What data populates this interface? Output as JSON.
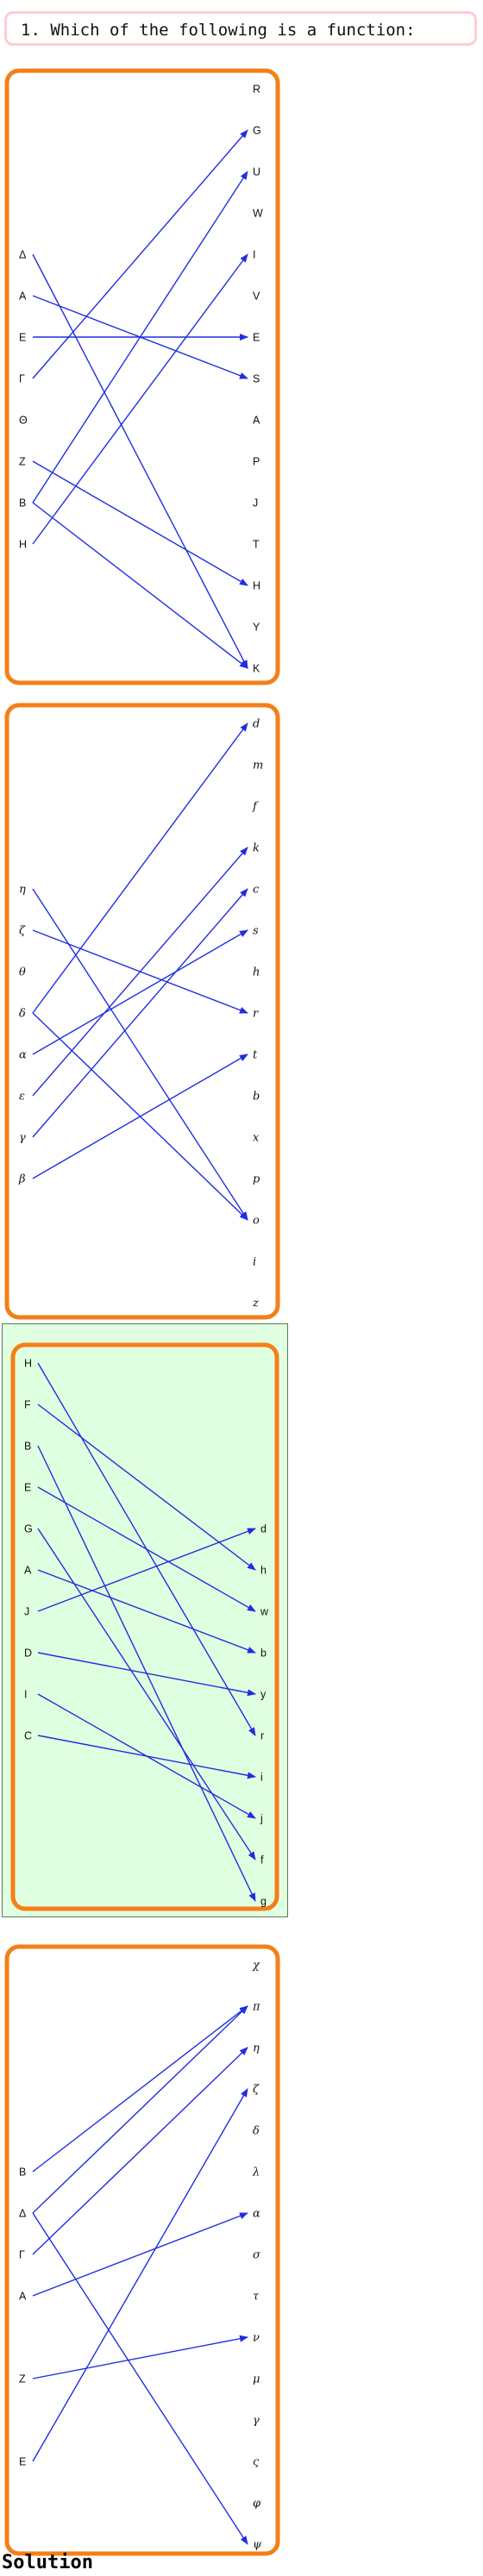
{
  "question": {
    "text": "1. Which of the following is a function:"
  },
  "solution_label": "Solution",
  "colors": {
    "frame": "#f57f17",
    "arrow": "#1f2ee0",
    "correct_bg": "#e0ffe0",
    "question_border": "#ffcdd2"
  },
  "options": [
    {
      "italic": false,
      "correct": false,
      "left": [
        "Δ",
        "A",
        "E",
        "Γ",
        "Θ",
        "Z",
        "B",
        "H"
      ],
      "right": [
        "R",
        "G",
        "U",
        "W",
        "I",
        "V",
        "E",
        "S",
        "A",
        "P",
        "J",
        "T",
        "H",
        "Y",
        "K"
      ],
      "edges": [
        [
          0,
          14
        ],
        [
          1,
          7
        ],
        [
          2,
          6
        ],
        [
          3,
          1
        ],
        [
          5,
          12
        ],
        [
          6,
          2
        ],
        [
          6,
          14
        ],
        [
          7,
          4
        ]
      ]
    },
    {
      "italic": true,
      "correct": false,
      "left": [
        "η",
        "ζ",
        "θ",
        "δ",
        "α",
        "ε",
        "γ",
        "β"
      ],
      "right": [
        "d",
        "m",
        "f",
        "k",
        "c",
        "s",
        "h",
        "r",
        "t",
        "b",
        "x",
        "p",
        "o",
        "i",
        "z"
      ],
      "edges": [
        [
          0,
          12
        ],
        [
          1,
          7
        ],
        [
          3,
          0
        ],
        [
          3,
          12
        ],
        [
          4,
          5
        ],
        [
          5,
          3
        ],
        [
          6,
          4
        ],
        [
          7,
          8
        ]
      ]
    },
    {
      "italic": false,
      "correct": true,
      "left": [
        "H",
        "F",
        "B",
        "E",
        "G",
        "A",
        "J",
        "D",
        "I",
        "C"
      ],
      "right": [
        "d",
        "h",
        "w",
        "b",
        "y",
        "r",
        "i",
        "j",
        "f",
        "g"
      ],
      "edges": [
        [
          0,
          5
        ],
        [
          1,
          1
        ],
        [
          2,
          9
        ],
        [
          3,
          2
        ],
        [
          4,
          8
        ],
        [
          5,
          3
        ],
        [
          6,
          0
        ],
        [
          7,
          4
        ],
        [
          8,
          7
        ],
        [
          9,
          6
        ]
      ]
    },
    {
      "italic": false,
      "correct": false,
      "left": [
        "B",
        "Δ",
        "Γ",
        "A",
        "Z",
        "E"
      ],
      "right": [
        "χ",
        "π",
        "η",
        "ζ",
        "δ",
        "λ",
        "α",
        "σ",
        "τ",
        "ν",
        "μ",
        "γ",
        "ς",
        "φ",
        "ψ"
      ],
      "right_italic": true,
      "edges": [
        [
          0,
          1
        ],
        [
          1,
          1
        ],
        [
          1,
          14
        ],
        [
          2,
          2
        ],
        [
          3,
          6
        ],
        [
          4,
          9
        ],
        [
          5,
          3
        ]
      ]
    }
  ]
}
